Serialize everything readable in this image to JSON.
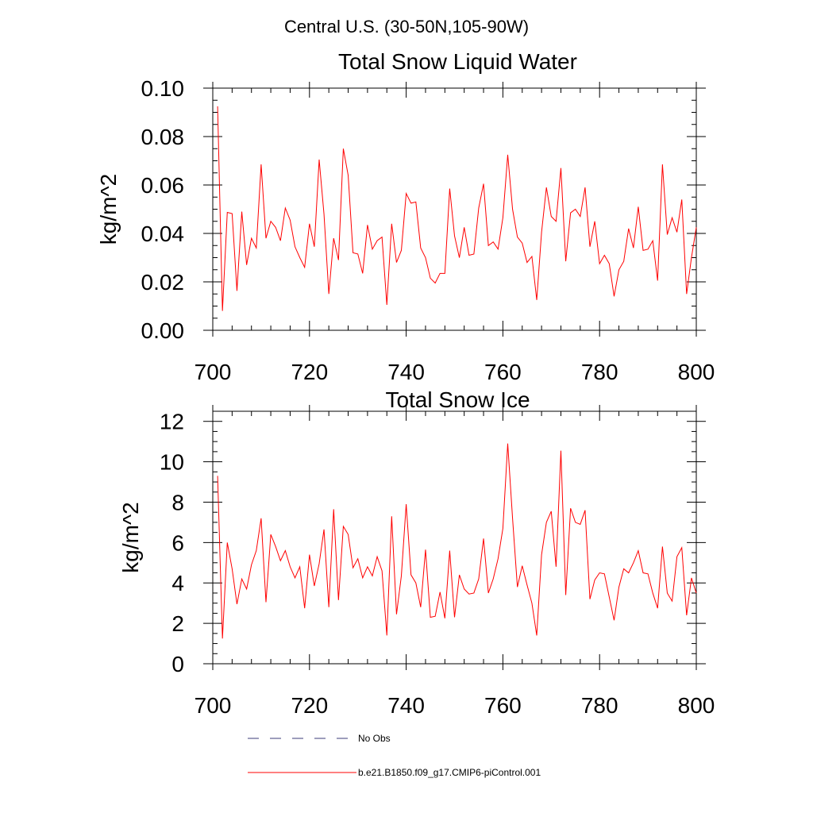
{
  "suptitle": "Central U.S. (30-50N,105-90W)",
  "legend": [
    {
      "label": "No Obs",
      "color": "#3b3b7a",
      "dash": true
    },
    {
      "label": "b.e21.B1850.f09_g17.CMIP6-piControl.001",
      "color": "#ff0000",
      "dash": false
    }
  ],
  "chart_data": [
    {
      "type": "line",
      "title": "Total Snow Liquid Water",
      "xlabel": "",
      "ylabel": "kg/m^2",
      "xlim": [
        700,
        800
      ],
      "ylim": [
        0,
        0.1
      ],
      "xticks": [
        700,
        720,
        740,
        760,
        780,
        800
      ],
      "xtick_labels": [
        "700",
        "720",
        "740",
        "760",
        "780",
        "800"
      ],
      "yticks": [
        0,
        0.02,
        0.04,
        0.06,
        0.08,
        0.1
      ],
      "ytick_labels": [
        "0.00",
        "0.02",
        "0.04",
        "0.06",
        "0.08",
        "0.10"
      ],
      "series": [
        {
          "name": "b.e21.B1850.f09_g17.CMIP6-piControl.001",
          "color": "#ff0000",
          "x_start": 701,
          "values": [
            0.0925,
            0.008,
            0.0487,
            0.0482,
            0.0163,
            0.049,
            0.027,
            0.038,
            0.034,
            0.0685,
            0.038,
            0.045,
            0.0425,
            0.037,
            0.0505,
            0.0455,
            0.0345,
            0.03,
            0.026,
            0.044,
            0.0345,
            0.0705,
            0.048,
            0.015,
            0.038,
            0.029,
            0.075,
            0.064,
            0.032,
            0.0315,
            0.0235,
            0.0435,
            0.0335,
            0.037,
            0.0385,
            0.0105,
            0.044,
            0.028,
            0.033,
            0.0565,
            0.0525,
            0.053,
            0.034,
            0.03,
            0.0215,
            0.0195,
            0.0235,
            0.0235,
            0.0585,
            0.039,
            0.03,
            0.0425,
            0.031,
            0.0315,
            0.0505,
            0.0605,
            0.035,
            0.0365,
            0.0335,
            0.0465,
            0.0725,
            0.05,
            0.0385,
            0.036,
            0.028,
            0.0305,
            0.0125,
            0.0405,
            0.059,
            0.047,
            0.045,
            0.067,
            0.0285,
            0.0485,
            0.05,
            0.047,
            0.059,
            0.0345,
            0.045,
            0.0275,
            0.031,
            0.0275,
            0.014,
            0.025,
            0.0285,
            0.042,
            0.034,
            0.051,
            0.033,
            0.0335,
            0.037,
            0.0205,
            0.0685,
            0.0395,
            0.0465,
            0.0405,
            0.054,
            0.015,
            0.03,
            0.0425
          ]
        }
      ]
    },
    {
      "type": "line",
      "title": "Total Snow Ice",
      "xlabel": "",
      "ylabel": "kg/m^2",
      "xlim": [
        700,
        800
      ],
      "ylim": [
        0,
        12.5
      ],
      "xticks": [
        700,
        720,
        740,
        760,
        780,
        800
      ],
      "xtick_labels": [
        "700",
        "720",
        "740",
        "760",
        "780",
        "800"
      ],
      "yticks": [
        0,
        2,
        4,
        6,
        8,
        10,
        12
      ],
      "ytick_labels": [
        "0",
        "2",
        "4",
        "6",
        "8",
        "10",
        "12"
      ],
      "series": [
        {
          "name": "b.e21.B1850.f09_g17.CMIP6-piControl.001",
          "color": "#ff0000",
          "x_start": 701,
          "values": [
            9.3,
            1.25,
            6.0,
            4.7,
            2.95,
            4.2,
            3.7,
            4.9,
            5.6,
            7.2,
            3.05,
            6.4,
            5.8,
            5.1,
            5.6,
            4.8,
            4.25,
            4.8,
            2.75,
            5.4,
            3.85,
            4.95,
            6.65,
            2.8,
            7.65,
            3.15,
            6.8,
            6.4,
            4.75,
            5.2,
            4.25,
            4.8,
            4.35,
            5.3,
            4.6,
            1.4,
            7.3,
            2.45,
            4.35,
            7.9,
            4.4,
            4.0,
            2.8,
            5.65,
            2.3,
            2.35,
            3.55,
            2.25,
            5.6,
            2.3,
            4.4,
            3.7,
            3.45,
            3.5,
            4.2,
            6.2,
            3.5,
            4.2,
            5.2,
            6.7,
            10.9,
            7.2,
            3.8,
            4.85,
            3.9,
            3.0,
            1.4,
            5.4,
            7.0,
            7.55,
            4.8,
            10.55,
            3.4,
            7.7,
            7.0,
            6.9,
            7.6,
            3.2,
            4.15,
            4.5,
            4.45,
            3.3,
            2.15,
            3.8,
            4.7,
            4.5,
            5.0,
            5.6,
            4.5,
            4.45,
            3.5,
            2.75,
            5.8,
            3.5,
            3.1,
            5.3,
            5.75,
            2.4,
            4.25,
            3.5
          ]
        }
      ]
    }
  ]
}
